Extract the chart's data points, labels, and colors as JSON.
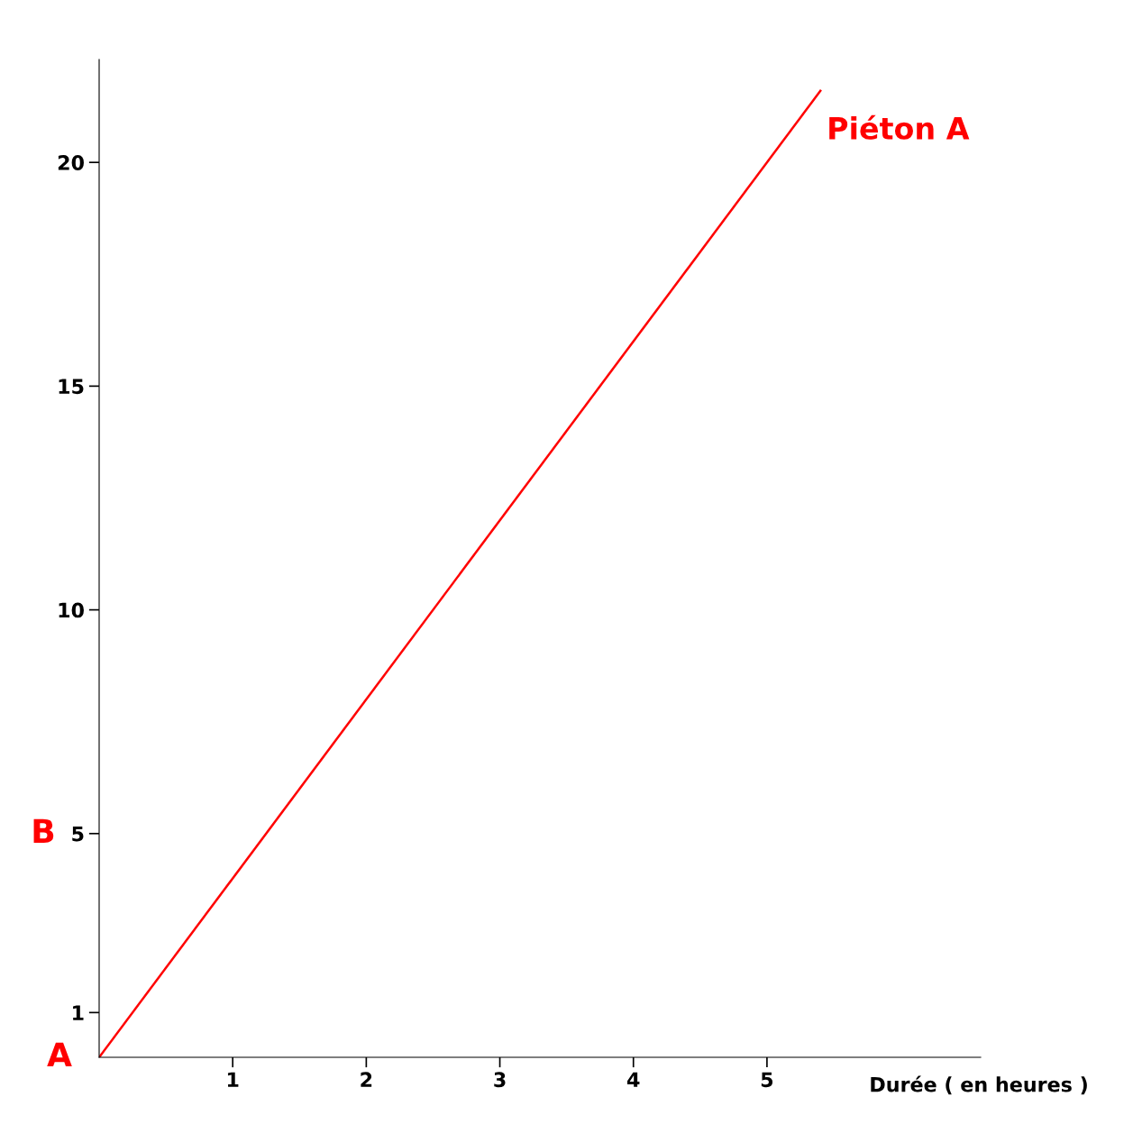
{
  "chart_data": {
    "type": "line",
    "xlabel": "Durée ( en heures )",
    "x": [
      0,
      5.4
    ],
    "series": [
      {
        "name": "Piéton A",
        "color": "#ff0000",
        "values": [
          0,
          21.6
        ]
      }
    ],
    "xlim": [
      0,
      6.6
    ],
    "ylim": [
      0,
      22.3
    ],
    "xticks": [
      1,
      2,
      3,
      4,
      5
    ],
    "yticks": [
      1,
      5,
      10,
      15,
      20
    ],
    "annotations": [
      "A",
      "B"
    ],
    "grid": false,
    "legend": false,
    "marker": "none",
    "line_style": "solid"
  }
}
